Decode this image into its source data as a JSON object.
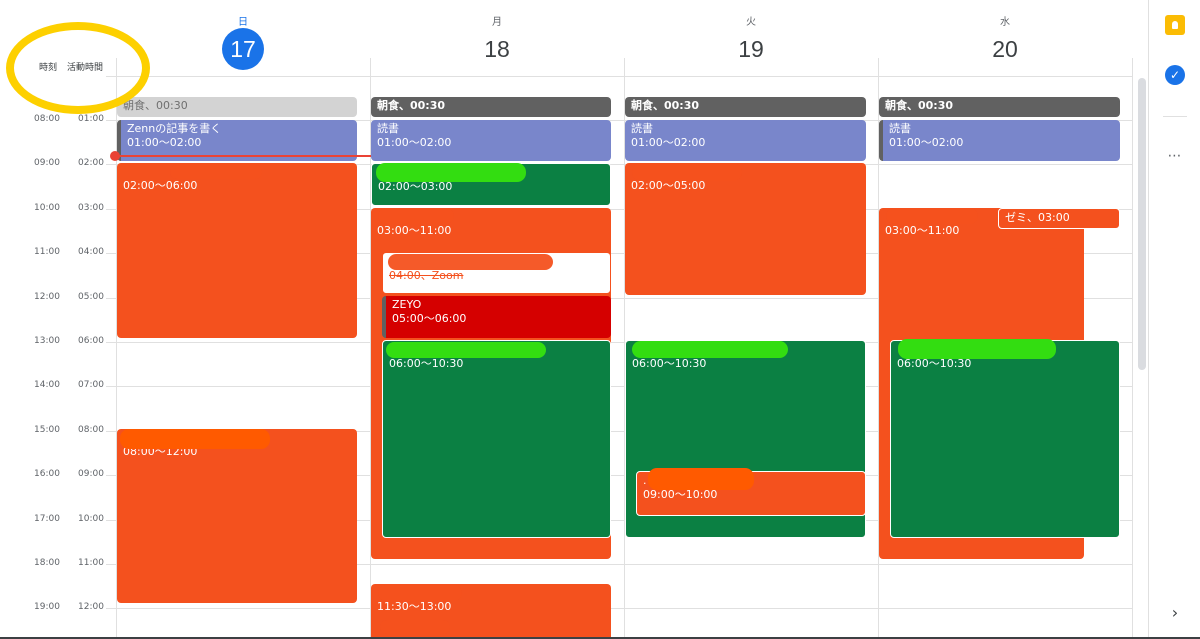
{
  "timezones": {
    "primary_label": "時刻",
    "secondary_label": "活動時間"
  },
  "time_rows": [
    {
      "primary": "08:00",
      "secondary": "01:00"
    },
    {
      "primary": "09:00",
      "secondary": "02:00"
    },
    {
      "primary": "10:00",
      "secondary": "03:00"
    },
    {
      "primary": "11:00",
      "secondary": "04:00"
    },
    {
      "primary": "12:00",
      "secondary": "05:00"
    },
    {
      "primary": "13:00",
      "secondary": "06:00"
    },
    {
      "primary": "14:00",
      "secondary": "07:00"
    },
    {
      "primary": "15:00",
      "secondary": "08:00"
    },
    {
      "primary": "16:00",
      "secondary": "09:00"
    },
    {
      "primary": "17:00",
      "secondary": "10:00"
    },
    {
      "primary": "18:00",
      "secondary": "11:00"
    },
    {
      "primary": "19:00",
      "secondary": "12:00"
    }
  ],
  "days": [
    {
      "weekday": "日",
      "date": "17",
      "today": true
    },
    {
      "weekday": "月",
      "date": "18",
      "today": false
    },
    {
      "weekday": "火",
      "date": "19",
      "today": false
    },
    {
      "weekday": "水",
      "date": "20",
      "today": false
    }
  ],
  "events": {
    "sun_breakfast": {
      "title": "朝食、00:30"
    },
    "sun_zenn": {
      "title": "Zennの記事を書く",
      "time": "01:00〜02:00"
    },
    "sun_block1": {
      "time": "02:00〜06:00"
    },
    "sun_block2": {
      "time": "08:00〜12:00"
    },
    "mon_breakfast": {
      "title": "朝食、00:30"
    },
    "mon_reading": {
      "title": "読書",
      "time": "01:00〜02:00"
    },
    "mon_green1": {
      "time": "02:00〜03:00"
    },
    "mon_block": {
      "time": "03:00〜11:00"
    },
    "mon_zoom": {
      "title": "04:00、Zoom"
    },
    "mon_zeyo": {
      "title": "ZEYO",
      "time": "05:00〜06:00"
    },
    "mon_green2": {
      "time": "06:00〜10:30"
    },
    "mon_block3": {
      "time": "11:30〜13:00"
    },
    "tue_breakfast": {
      "title": "朝食、00:30"
    },
    "tue_reading": {
      "title": "読書",
      "time": "01:00〜02:00"
    },
    "tue_block1": {
      "time": "02:00〜05:00"
    },
    "tue_green": {
      "time": "06:00〜10:30"
    },
    "tue_block2": {
      "title": ".",
      "time": "09:00〜10:00"
    },
    "wed_breakfast": {
      "title": "朝食、00:30"
    },
    "wed_reading": {
      "title": "読書",
      "time": "01:00〜02:00"
    },
    "wed_block": {
      "time": "03:00〜11:00"
    },
    "wed_seminar": {
      "title": "ゼミ、03:00"
    },
    "wed_green": {
      "time": "06:00〜10:30"
    }
  },
  "side_panel": {
    "keep_icon": "keep-icon",
    "tasks_icon": "tasks-icon",
    "more": "⋯",
    "expand": "›"
  },
  "colors": {
    "today": "#1a73e8",
    "tomato": "#f4511e",
    "basil": "#0b8043",
    "lavender": "#7986cb",
    "graphite": "#616161",
    "now_line": "#ea4335",
    "highlight": "#fdd000"
  }
}
